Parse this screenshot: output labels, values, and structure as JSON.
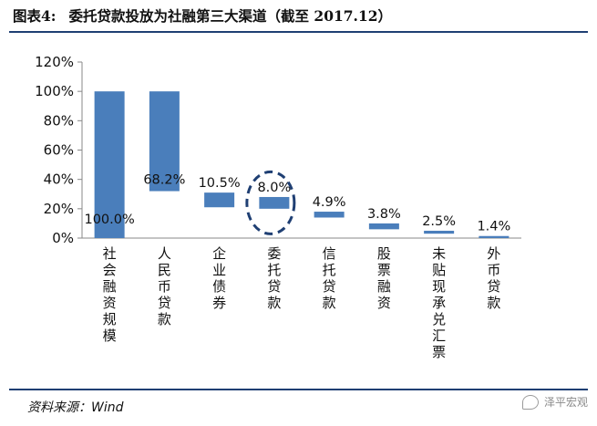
{
  "header": {
    "figure_number": "图表4:",
    "title": "委托贷款投放为社融第三大渠道（截至 2017.12）"
  },
  "footer": {
    "source": "资料来源：Wind",
    "watermark": "泽平宏观"
  },
  "colors": {
    "bar": "#4a7ebb",
    "rule": "#1f3f73",
    "highlight_ellipse": "#1f3f73"
  },
  "chart_data": {
    "type": "bar",
    "subtype": "waterfall",
    "categories": [
      "社会融资规模",
      "人民币贷款",
      "企业债券",
      "委托贷款",
      "信托贷款",
      "股票融资",
      "未贴现承兑汇票",
      "外币贷款"
    ],
    "values": [
      100.0,
      68.2,
      10.5,
      8.0,
      4.9,
      3.8,
      2.5,
      1.4
    ],
    "data_labels": [
      "100.0%",
      "68.2%",
      "10.5%",
      "8.0%",
      "4.9%",
      "3.8%",
      "2.5%",
      "1.4%"
    ],
    "bar_ranges": [
      [
        0,
        100
      ],
      [
        32,
        100
      ],
      [
        21,
        31
      ],
      [
        20,
        28
      ],
      [
        14,
        18
      ],
      [
        6,
        10
      ],
      [
        3,
        5
      ],
      [
        0,
        1.4
      ]
    ],
    "ylim": [
      0,
      120
    ],
    "yticks": [
      0,
      20,
      40,
      60,
      80,
      100,
      120
    ],
    "ytick_labels": [
      "0%",
      "20%",
      "40%",
      "60%",
      "80%",
      "100%",
      "120%"
    ],
    "highlighted_category": "委托贷款",
    "grid": false,
    "legend": "none"
  }
}
